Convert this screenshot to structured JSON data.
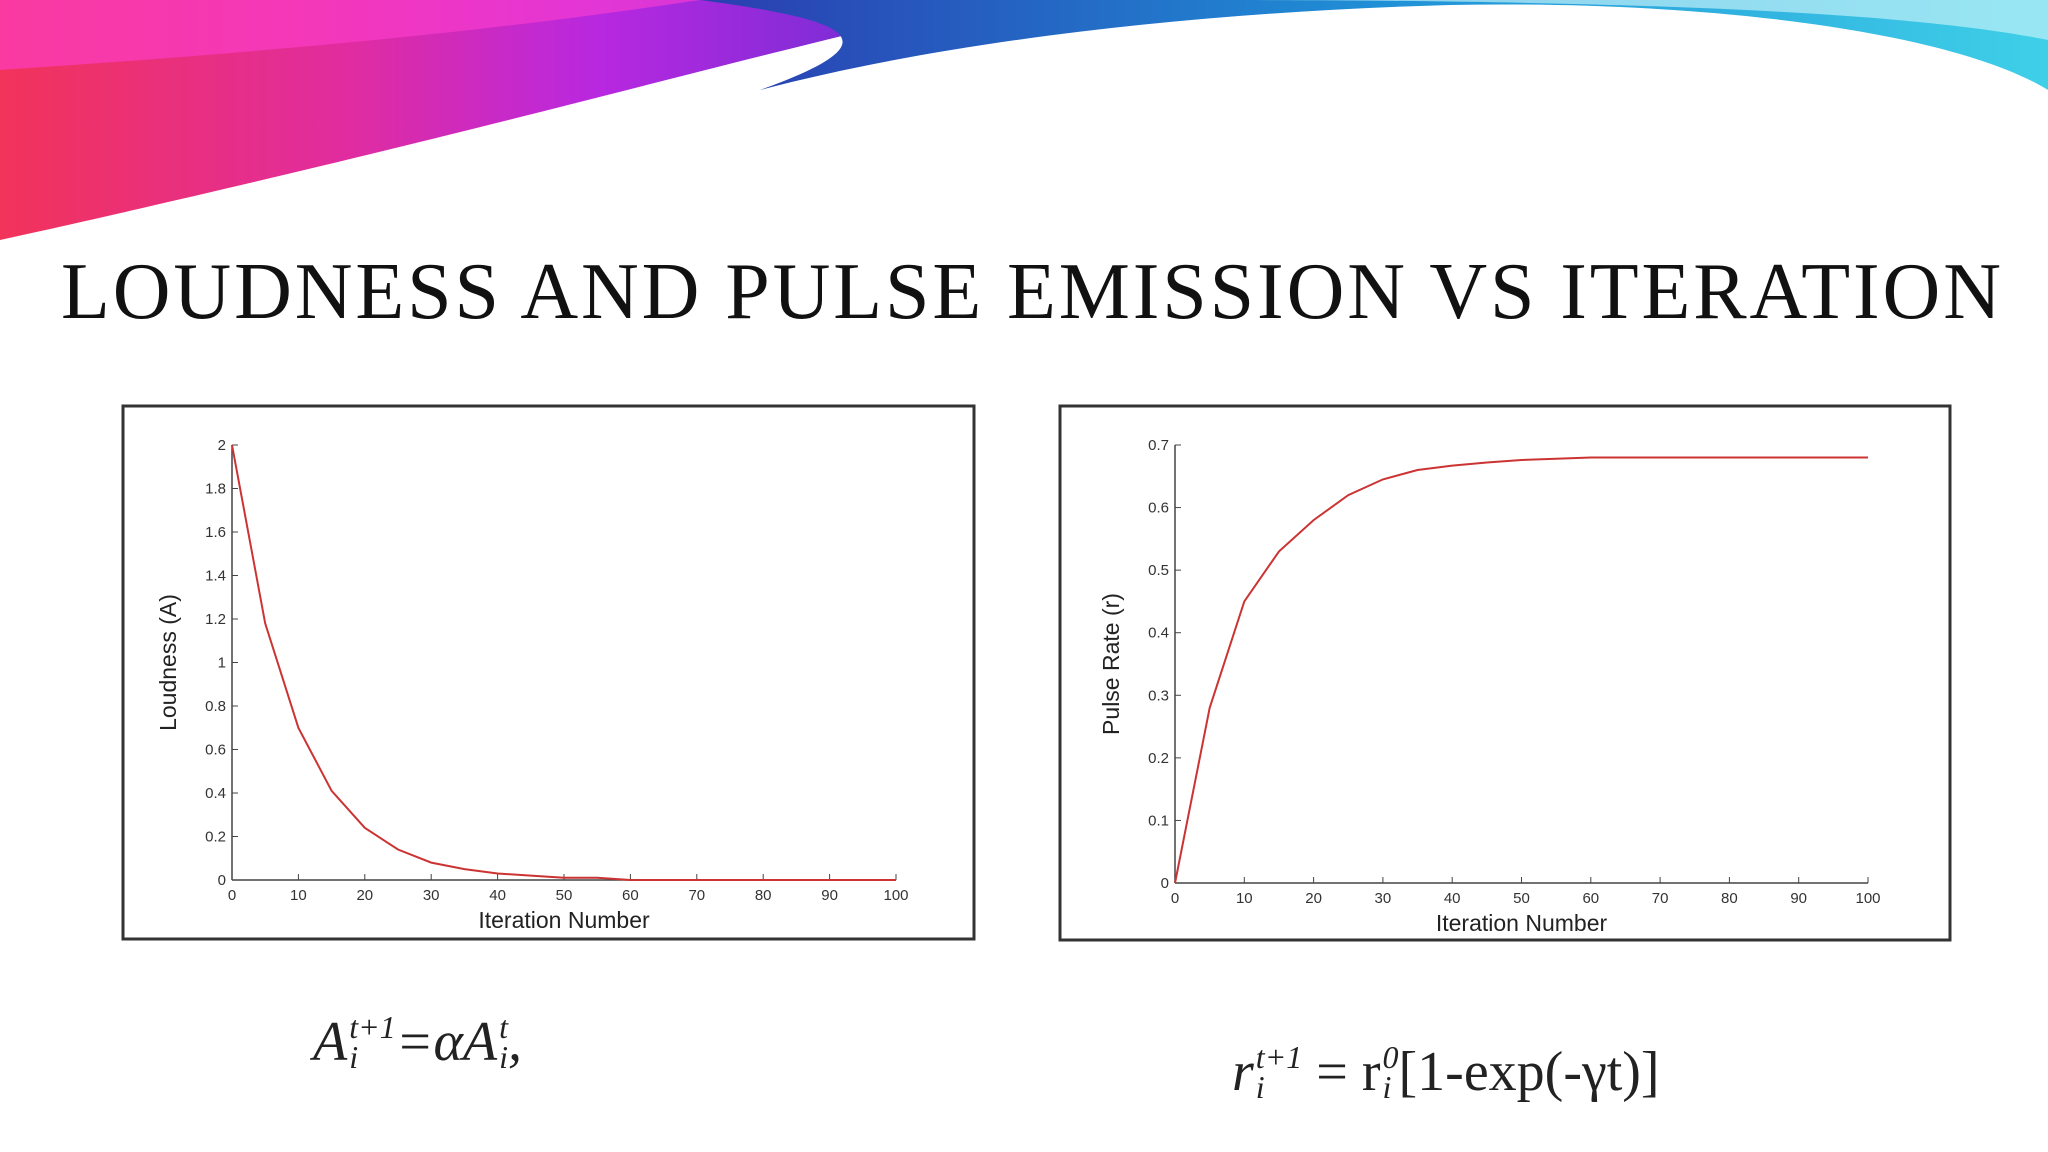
{
  "title": "LOUDNESS AND PULSE EMISSION VS ITERATION",
  "chart_data": [
    {
      "type": "line",
      "xlabel": "Iteration Number",
      "ylabel": "Loudness (A)",
      "color": "#cc3333",
      "x": [
        0,
        5,
        10,
        15,
        20,
        25,
        30,
        35,
        40,
        45,
        50,
        55,
        60,
        65,
        70,
        75,
        80,
        85,
        90,
        95,
        100
      ],
      "values": [
        2,
        1.18,
        0.7,
        0.41,
        0.24,
        0.14,
        0.08,
        0.05,
        0.03,
        0.02,
        0.01,
        0.01,
        0,
        0,
        0,
        0,
        0,
        0,
        0,
        0,
        0
      ],
      "xlim": [
        0,
        100
      ],
      "xticks": [
        0,
        10,
        20,
        30,
        40,
        50,
        60,
        70,
        80,
        90,
        100
      ],
      "ylim": [
        0,
        2
      ],
      "yticks": [
        0,
        0.2,
        0.4,
        0.6,
        0.8,
        1,
        1.2,
        1.4,
        1.6,
        1.8,
        2
      ]
    },
    {
      "type": "line",
      "xlabel": "Iteration Number",
      "ylabel": "Pulse Rate (r)",
      "color": "#cc3333",
      "x": [
        0,
        5,
        10,
        15,
        20,
        25,
        30,
        35,
        40,
        45,
        50,
        55,
        60,
        65,
        70,
        75,
        80,
        85,
        90,
        95,
        100
      ],
      "values": [
        0,
        0.28,
        0.45,
        0.53,
        0.58,
        0.62,
        0.645,
        0.66,
        0.667,
        0.672,
        0.676,
        0.678,
        0.68,
        0.68,
        0.68,
        0.68,
        0.68,
        0.68,
        0.68,
        0.68,
        0.68
      ],
      "xlim": [
        0,
        100
      ],
      "xticks": [
        0,
        10,
        20,
        30,
        40,
        50,
        60,
        70,
        80,
        90,
        100
      ],
      "ylim": [
        0,
        0.7
      ],
      "yticks": [
        0,
        0.1,
        0.2,
        0.3,
        0.4,
        0.5,
        0.6,
        0.7
      ]
    }
  ],
  "formulas": [
    [
      "A",
      "i",
      "t+1",
      "=αA",
      "i",
      "t",
      ","
    ],
    [
      "r",
      "i",
      "t+1",
      " = r",
      "i",
      "0",
      "[1-exp(-γt)]"
    ]
  ]
}
